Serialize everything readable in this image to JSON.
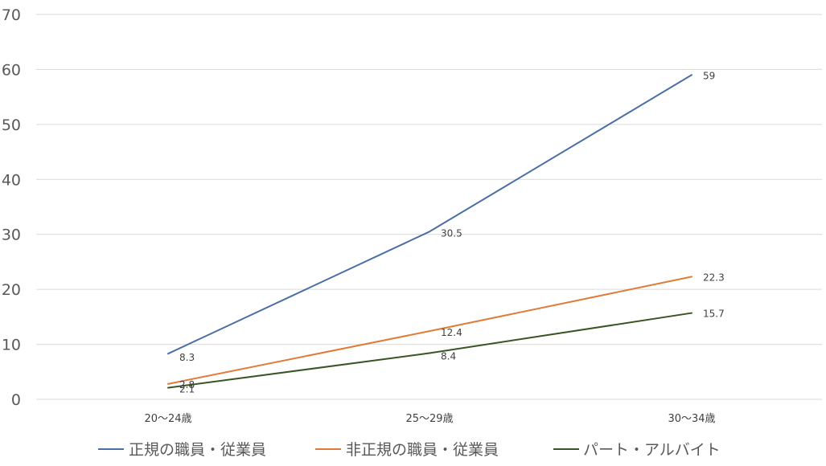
{
  "chart_data": {
    "type": "line",
    "categories": [
      "20～24歳",
      "25～29歳",
      "30～34歳"
    ],
    "ylim": [
      0,
      70
    ],
    "yticks": [
      0,
      10,
      20,
      30,
      40,
      50,
      60,
      70
    ],
    "grid": true,
    "legend_position": "bottom",
    "series": [
      {
        "name": "正規の職員・従業員",
        "values": [
          8.3,
          30.5,
          59
        ],
        "labels": [
          "8.3",
          "30.5",
          "59"
        ],
        "color": "#4a6fa5"
      },
      {
        "name": "非正規の職員・従業員",
        "values": [
          2.8,
          12.4,
          22.3
        ],
        "labels": [
          "2.8",
          "12.4",
          "22.3"
        ],
        "color": "#e07b39"
      },
      {
        "name": "パート・アルバイト",
        "values": [
          2.1,
          8.4,
          15.7
        ],
        "labels": [
          "2.1",
          "8.4",
          "15.7"
        ],
        "color": "#375623"
      }
    ]
  }
}
